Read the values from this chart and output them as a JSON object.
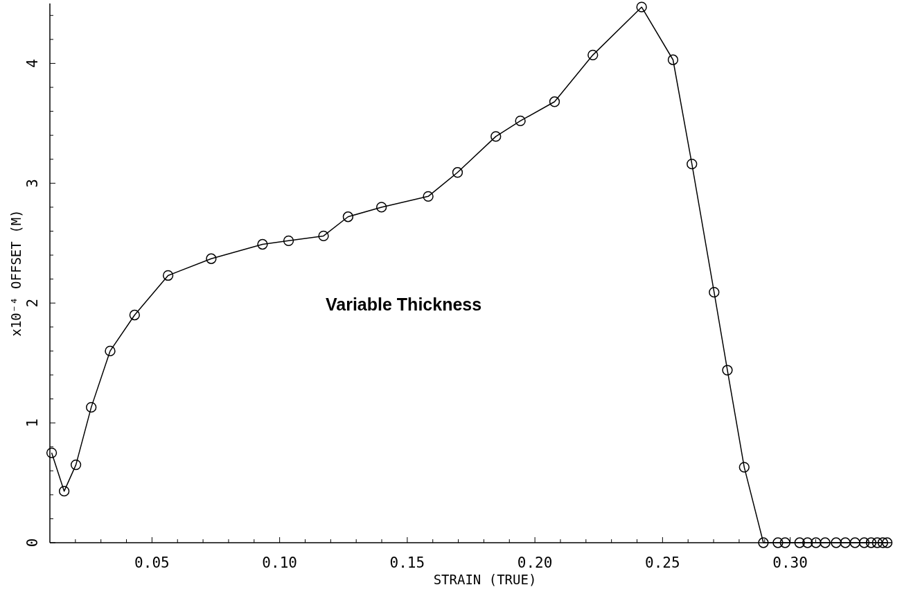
{
  "chart_data": {
    "type": "line",
    "xlabel": "STRAIN (TRUE)",
    "ylabel": "x10⁻⁴  OFFSET (M)",
    "annotations": [
      "Variable Thickness"
    ],
    "xlim": [
      0.01,
      0.34
    ],
    "ylim": [
      0,
      4.5
    ],
    "xticks": [
      {
        "value": 0.02,
        "label": null
      },
      {
        "value": 0.03,
        "label": null
      },
      {
        "value": 0.04,
        "label": null
      },
      {
        "value": 0.05,
        "label": "0.05"
      },
      {
        "value": 0.06,
        "label": null
      },
      {
        "value": 0.07,
        "label": null
      },
      {
        "value": 0.08,
        "label": null
      },
      {
        "value": 0.09,
        "label": null
      },
      {
        "value": 0.1,
        "label": "0.10"
      },
      {
        "value": 0.11,
        "label": null
      },
      {
        "value": 0.12,
        "label": null
      },
      {
        "value": 0.13,
        "label": null
      },
      {
        "value": 0.14,
        "label": null
      },
      {
        "value": 0.15,
        "label": "0.15"
      },
      {
        "value": 0.16,
        "label": null
      },
      {
        "value": 0.17,
        "label": null
      },
      {
        "value": 0.18,
        "label": null
      },
      {
        "value": 0.19,
        "label": null
      },
      {
        "value": 0.2,
        "label": "0.20"
      },
      {
        "value": 0.21,
        "label": null
      },
      {
        "value": 0.22,
        "label": null
      },
      {
        "value": 0.23,
        "label": null
      },
      {
        "value": 0.24,
        "label": null
      },
      {
        "value": 0.25,
        "label": "0.25"
      },
      {
        "value": 0.26,
        "label": null
      },
      {
        "value": 0.27,
        "label": null
      },
      {
        "value": 0.28,
        "label": null
      },
      {
        "value": 0.29,
        "label": null
      },
      {
        "value": 0.3,
        "label": "0.30"
      },
      {
        "value": 0.31,
        "label": null
      },
      {
        "value": 0.32,
        "label": null
      },
      {
        "value": 0.33,
        "label": null
      }
    ],
    "yticks": [
      0,
      {
        "value": 0.2,
        "label": null
      },
      {
        "value": 0.4,
        "label": null
      },
      {
        "value": 0.6,
        "label": null
      },
      {
        "value": 0.8,
        "label": null
      },
      1,
      {
        "value": 1.2,
        "label": null
      },
      {
        "value": 1.4,
        "label": null
      },
      {
        "value": 1.6,
        "label": null
      },
      {
        "value": 1.8,
        "label": null
      },
      2,
      {
        "value": 2.2,
        "label": null
      },
      {
        "value": 2.4,
        "label": null
      },
      {
        "value": 2.6,
        "label": null
      },
      {
        "value": 2.8,
        "label": null
      },
      3,
      {
        "value": 3.2,
        "label": null
      },
      {
        "value": 3.4,
        "label": null
      },
      {
        "value": 3.6,
        "label": null
      },
      {
        "value": 3.8,
        "label": null
      },
      4,
      {
        "value": 4.2,
        "label": null
      },
      {
        "value": 4.4,
        "label": null
      }
    ],
    "grid": false,
    "marker": "circle",
    "line_style": "solid",
    "series": [
      {
        "color": "#000000",
        "x": [
          0.0107,
          0.0156,
          0.0202,
          0.0262,
          0.0336,
          0.0432,
          0.0563,
          0.0732,
          0.0933,
          0.1035,
          0.1172,
          0.1268,
          0.1399,
          0.1582,
          0.1697,
          0.1847,
          0.1943,
          0.2077,
          0.2227,
          0.2418,
          0.2541,
          0.2615,
          0.2702,
          0.2754,
          0.282,
          0.2895,
          0.2952,
          0.298,
          0.3037,
          0.3068,
          0.3101,
          0.3137,
          0.318,
          0.3216,
          0.3254,
          0.329,
          0.3317,
          0.3341,
          0.3363,
          0.338
        ],
        "values": [
          0.75,
          0.43,
          0.65,
          1.13,
          1.6,
          1.9,
          2.23,
          2.37,
          2.49,
          2.52,
          2.56,
          2.72,
          2.8,
          2.89,
          3.09,
          3.39,
          3.52,
          3.68,
          4.07,
          4.47,
          4.03,
          3.16,
          2.09,
          1.44,
          0.63,
          0,
          0,
          0,
          0,
          0,
          0,
          0,
          0,
          0,
          0,
          0,
          0,
          0,
          0,
          0
        ]
      }
    ]
  }
}
